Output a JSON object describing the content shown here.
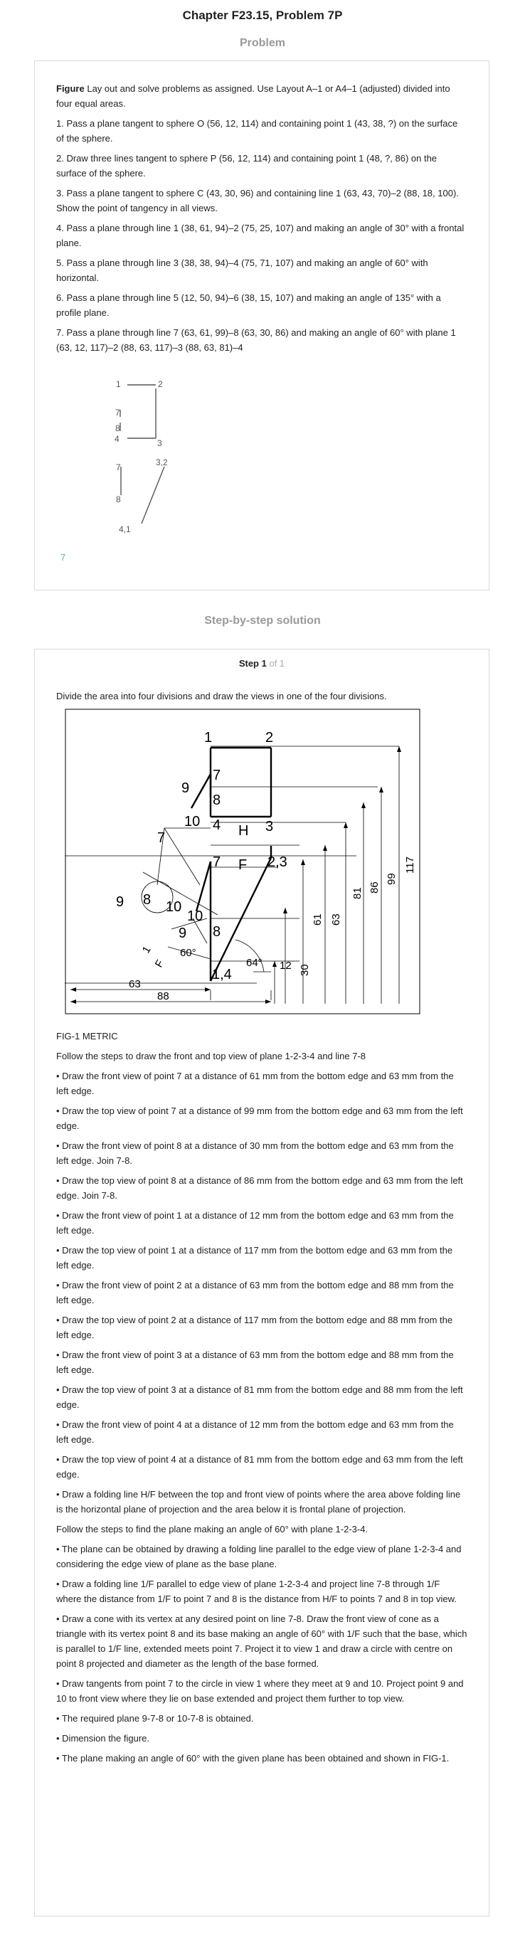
{
  "header": {
    "title": "Chapter F23.15, Problem 7P"
  },
  "problem": {
    "heading": "Problem",
    "figure_word": "Figure",
    "intro": " Lay out and solve problems as assigned. Use Layout A–1 or A4–1 (adjusted) divided into four equal areas.",
    "items": [
      "1. Pass a plane tangent to sphere O (56, 12, 114) and containing point 1 (43, 38, ?) on the surface of the sphere.",
      "2. Draw three lines tangent to sphere P (56, 12, 114) and containing point 1 (48, ?, 86) on the surface of the sphere.",
      "3. Pass a plane tangent to sphere C (43, 30, 96) and containing line 1 (63, 43, 70)–2 (88, 18, 100). Show the point of tangency in all views.",
      "4. Pass a plane through line 1 (38, 61, 94)–2 (75, 25, 107) and making an angle of 30° with a frontal plane.",
      "5. Pass a plane through line 3 (38, 38, 94)–4 (75, 71, 107) and making an angle of 60° with horizontal.",
      "6. Pass a plane through line 5 (12, 50, 94)–6 (38, 15, 107) and making an angle of 135° with a profile plane.",
      "7. Pass a plane through line 7 (63, 61, 99)–8 (63, 30, 86) and making an angle of 60° with plane 1 (63, 12, 117)–2 (88, 63, 117)–3 (88, 63, 81)–4"
    ],
    "sketch_labels": {
      "p1": "1",
      "p2": "2",
      "p7": "7",
      "p8": "8",
      "p4": "4",
      "p3": "3",
      "p7b": "7",
      "p32": "3,2",
      "p8b": "8",
      "p41": "4,1",
      "num": "7"
    }
  },
  "solution": {
    "heading": "Step-by-step solution",
    "step_label": "Step 1",
    "step_of": "of 1",
    "intro": "Divide the area into four divisions and draw the views in one of the four divisions.",
    "fig_caption": "FIG-1 METRIC",
    "paragraphs": [
      "Follow the steps to draw the front and top view of plane 1-2-3-4 and line 7-8",
      "• Draw the front view of point 7 at a distance of 61 mm from the bottom edge and 63 mm from the left edge.",
      "• Draw the top view of point 7 at a distance of 99 mm from the bottom edge and 63 mm from the left edge.",
      "• Draw the front view of point 8 at a distance of 30 mm from the bottom edge and 63 mm from the left edge. Join 7-8.",
      "• Draw the top view of point 8 at a distance of 86 mm from the bottom edge and 63 mm from the left edge. Join 7-8.",
      "• Draw the front view of point 1 at a distance of 12 mm from the bottom edge and 63 mm from the left edge.",
      "• Draw the top view of point 1 at a distance of 117 mm from the bottom edge and 63 mm from the left edge.",
      "• Draw the front view of point 2 at a distance of 63 mm from the bottom edge and 88 mm from the left edge.",
      "• Draw the top view of point 2 at a distance of 117 mm from the bottom edge and 88 mm from the left edge.",
      "• Draw the front view of point 3 at a distance of 63 mm from the bottom edge and 88 mm from the left edge.",
      "• Draw the top view of point 3 at a distance of 81 mm from the bottom edge and 88 mm from the left edge.",
      "• Draw the front view of point 4 at a distance of 12 mm from the bottom edge and 63 mm from the left edge.",
      "• Draw the top view of point 4 at a distance of 81 mm from the bottom edge and 63 mm from the left edge.",
      "• Draw a folding line H/F between the top and front view of points where the area above folding line is the horizontal plane of projection and the area below it is frontal plane of projection.",
      "Follow the steps to find the plane making an angle of 60° with plane 1-2-3-4.",
      "• The plane can be obtained by drawing a folding line parallel to the edge view of plane 1-2-3-4 and considering the edge view of plane as the base plane.",
      "• Draw a folding line 1/F parallel to edge view of plane 1-2-3-4 and project line 7-8 through 1/F where the distance from 1/F to point 7 and 8 is the distance from H/F to points 7 and 8 in top view.",
      "• Draw a cone with its vertex at any desired point on line 7-8. Draw the front view of cone as a triangle with its vertex point 8 and its base making an angle of 60° with 1/F such that the base, which is parallel to 1/F line, extended meets point 7. Project it to view 1 and draw a circle with centre on point 8 projected and diameter as the length of the base formed.",
      "• Draw tangents from point 7 to the circle in view 1 where they meet at 9 and 10. Project point 9 and 10 to front view where they lie on base extended and project them further to top view.",
      "• The required plane 9-7-8 or 10-7-8 is obtained.",
      "• Dimension the figure.",
      "• The plane making an angle of 60° with the given plane has been obtained and shown in FIG-1."
    ],
    "figure_labels": {
      "t1": "1",
      "t2": "2",
      "t7": "7",
      "t9": "9",
      "t8": "8",
      "t10": "10",
      "t4": "4",
      "tH": "H",
      "t3": "3",
      "f7": "7",
      "fF": "F",
      "f23": "2,3",
      "f10": "10",
      "f9": "9",
      "f8": "8",
      "f14": "1,4",
      "v7": "7",
      "v9": "9",
      "v8": "8",
      "v10": "10",
      "one": "1",
      "fF2": "F",
      "a60": "60°",
      "a64": "64°",
      "d63": "63",
      "d88": "88",
      "d12": "12",
      "d30": "30",
      "d61": "61",
      "d63b": "63",
      "d81": "81",
      "d86": "86",
      "d99": "99",
      "d117": "117"
    }
  }
}
